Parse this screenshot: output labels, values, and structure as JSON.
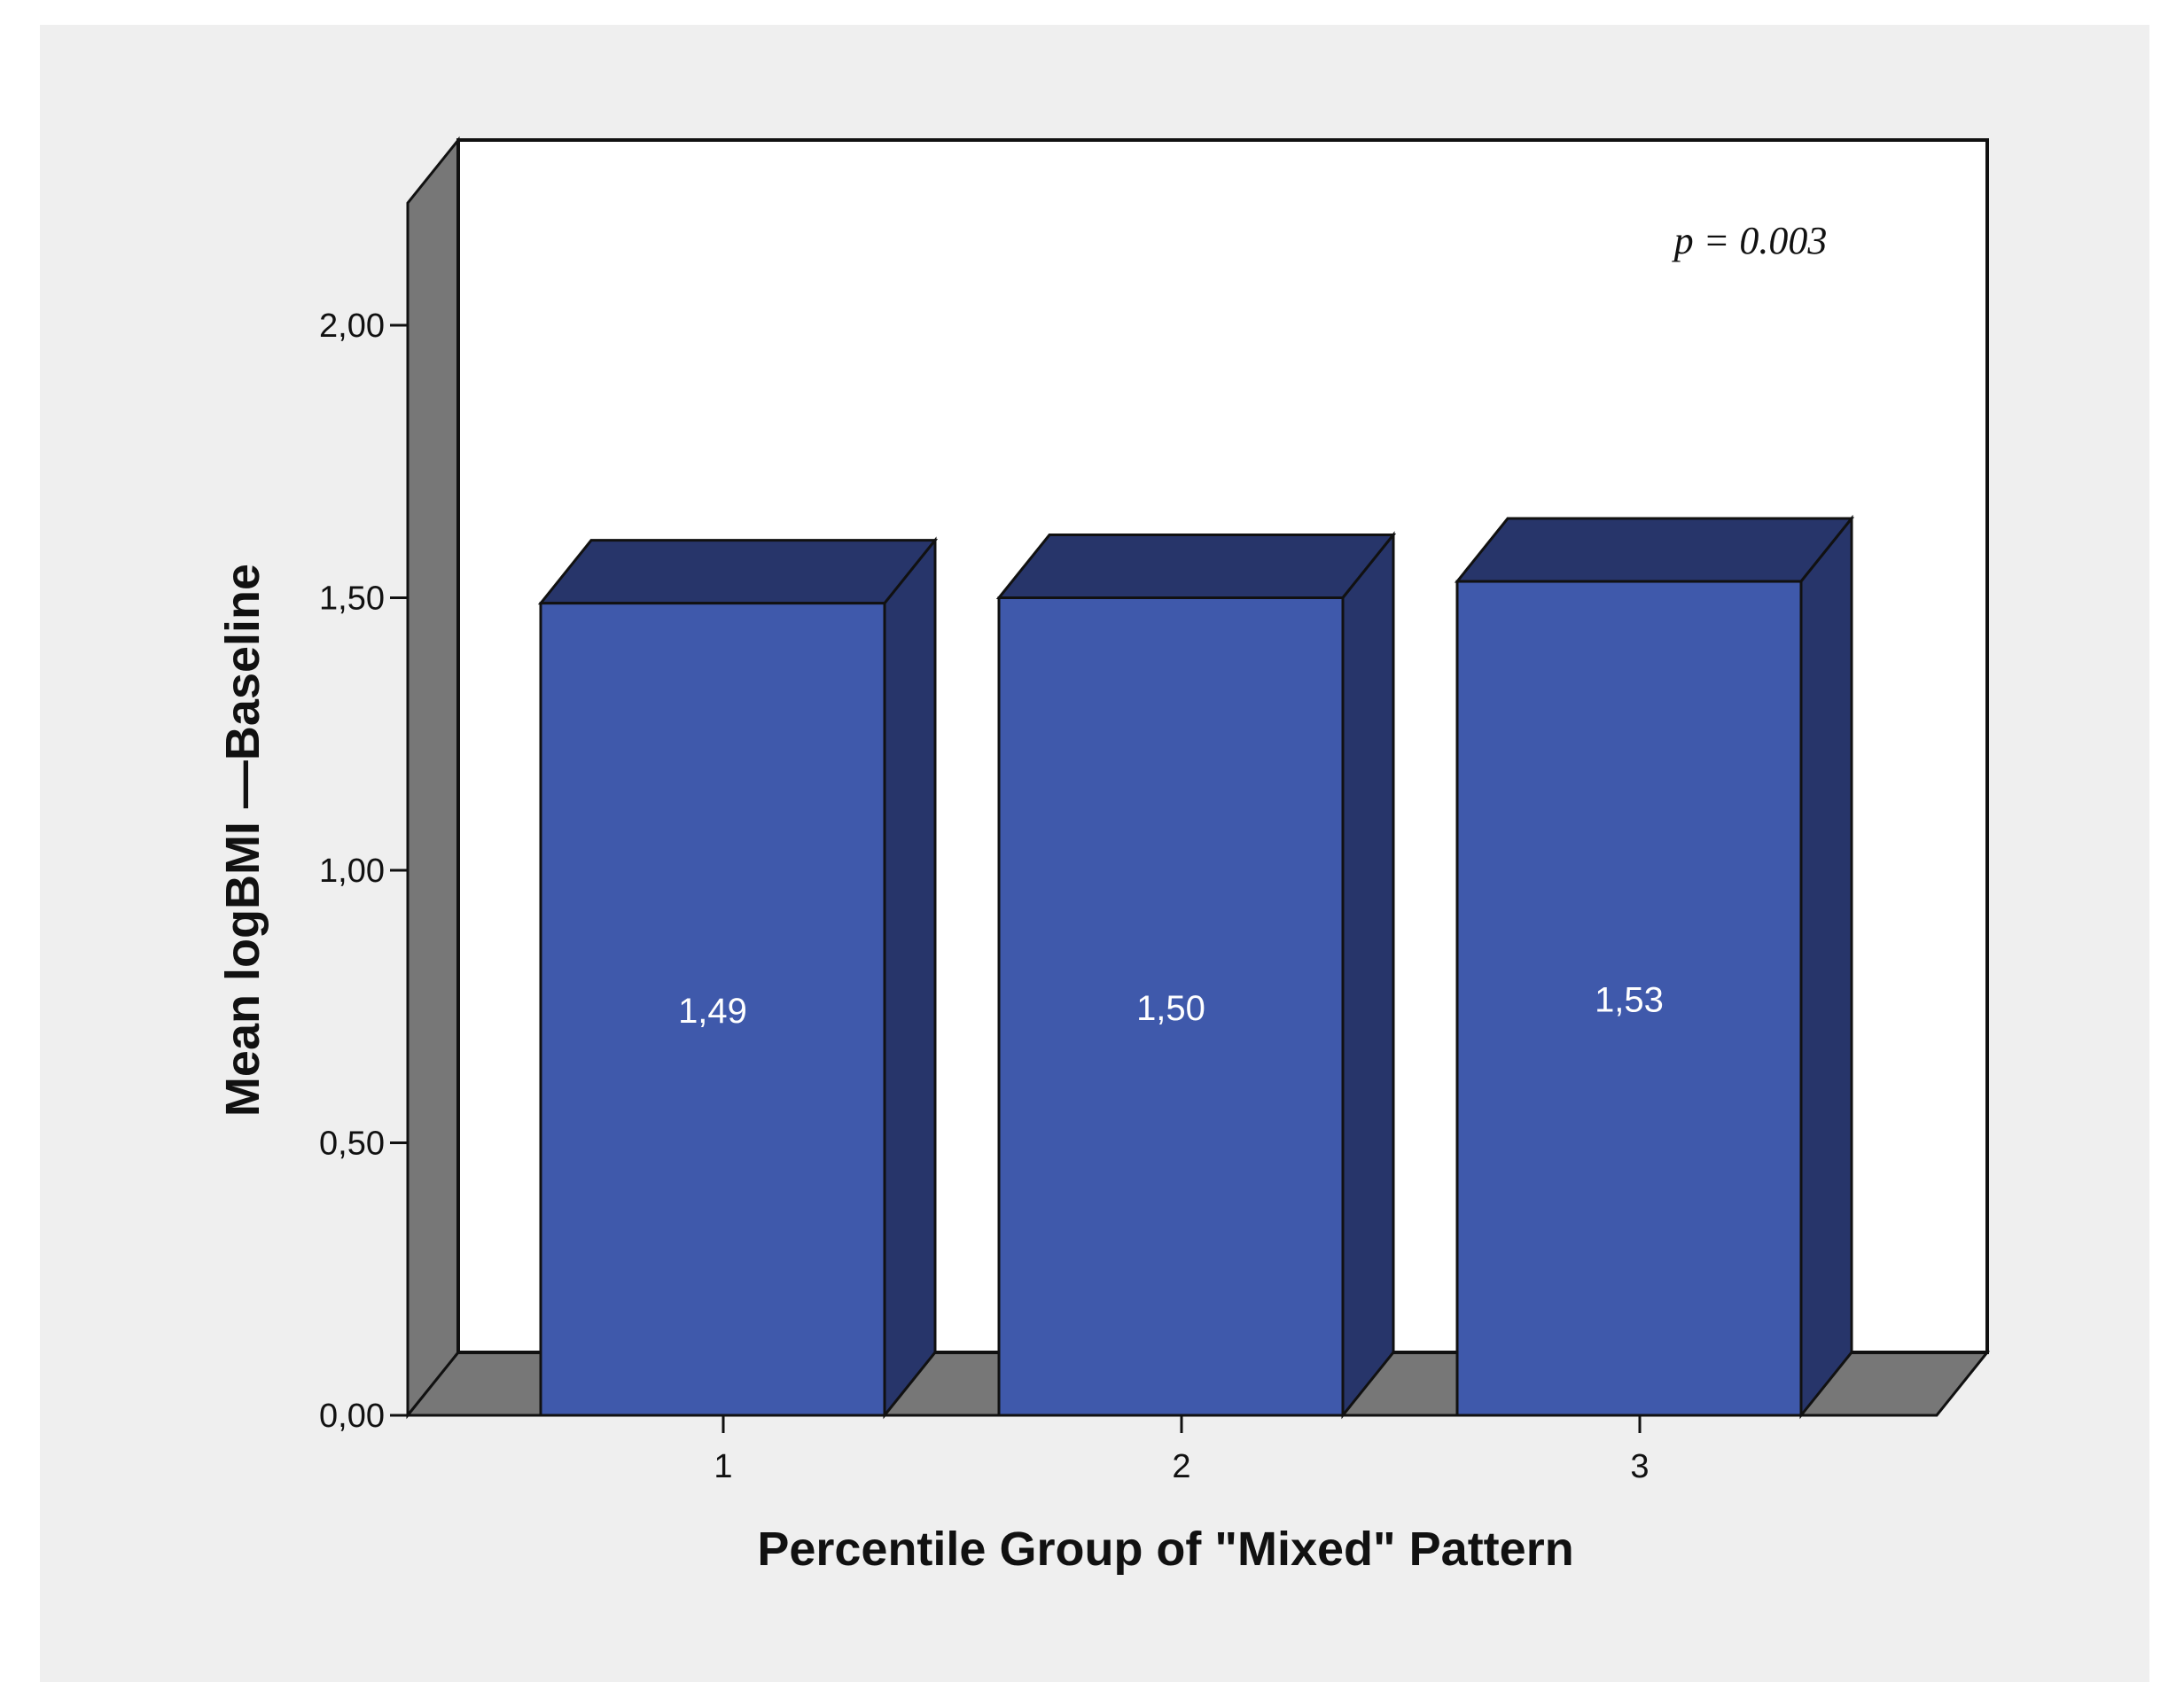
{
  "chart_data": {
    "type": "bar",
    "style": "3d",
    "categories": [
      "1",
      "2",
      "3"
    ],
    "values": [
      1.49,
      1.5,
      1.53
    ],
    "value_labels": [
      "1,49",
      "1,50",
      "1,53"
    ],
    "xlabel": "Percentile Group of \"Mixed\" Pattern",
    "ylabel": "Mean logBMI —Baseline",
    "ylim": [
      0,
      2.25
    ],
    "yticks": [
      0,
      0.5,
      1.0,
      1.5,
      2.0
    ],
    "ytick_labels": [
      "0,00",
      "0,50",
      "1,00",
      "1,50",
      "2,00"
    ],
    "annotation": "p = 0.003",
    "grid": false,
    "legend": "none",
    "colors": {
      "bar_front": "#3f59ab",
      "bar_side": "#27356a",
      "bar_top": "#27356a",
      "wall": "#777777",
      "plot_background": "#ffffff",
      "outer_background": "#efefef",
      "value_label": "#ffffff"
    }
  }
}
